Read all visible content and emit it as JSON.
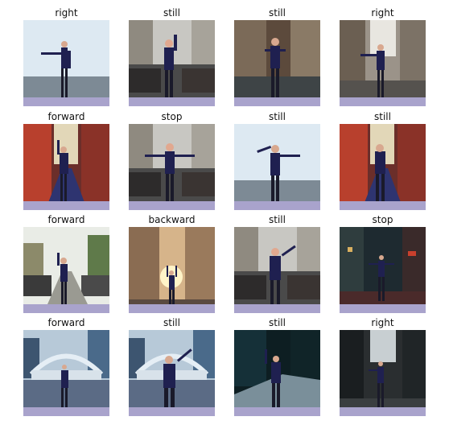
{
  "images": [
    {
      "label": "right",
      "scene": "foggy-road"
    },
    {
      "label": "still",
      "scene": "crowd-street"
    },
    {
      "label": "still",
      "scene": "old-buildings"
    },
    {
      "label": "right",
      "scene": "city-alley"
    },
    {
      "label": "forward",
      "scene": "colorful-alley"
    },
    {
      "label": "stop",
      "scene": "crowd-street"
    },
    {
      "label": "still",
      "scene": "foggy-road"
    },
    {
      "label": "still",
      "scene": "colorful-alley"
    },
    {
      "label": "forward",
      "scene": "car-street"
    },
    {
      "label": "backward",
      "scene": "sunset-street"
    },
    {
      "label": "still",
      "scene": "crowd-street"
    },
    {
      "label": "stop",
      "scene": "night-city"
    },
    {
      "label": "forward",
      "scene": "bridge-city"
    },
    {
      "label": "still",
      "scene": "bridge-city"
    },
    {
      "label": "still",
      "scene": "night-road"
    },
    {
      "label": "right",
      "scene": "dark-towers"
    }
  ],
  "colors": {
    "person": "#1f2050",
    "ground_strip": "#a9a3cc"
  }
}
